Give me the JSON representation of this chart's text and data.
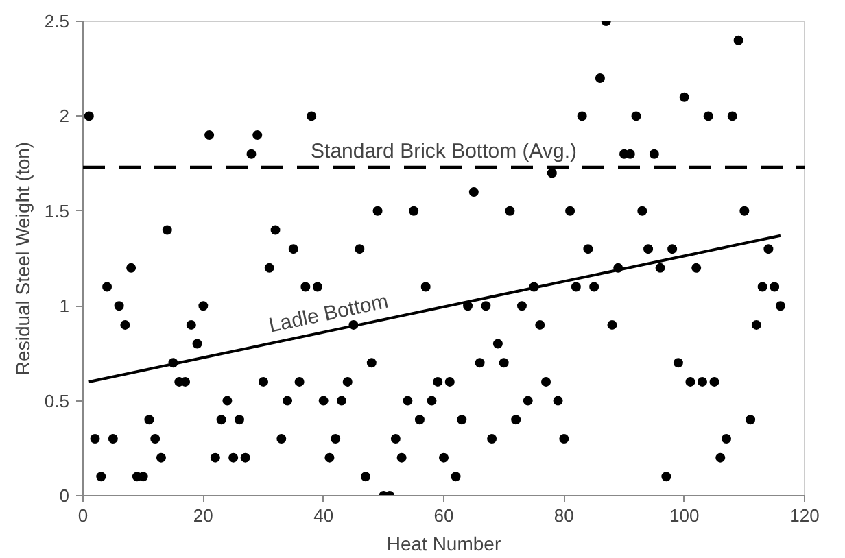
{
  "chart_data": {
    "type": "scatter",
    "xlabel": "Heat Number",
    "ylabel": "Residual Steel Weight (ton)",
    "xlim": [
      0,
      120
    ],
    "ylim": [
      0,
      2.5
    ],
    "xticks": [
      0,
      20,
      40,
      60,
      80,
      100,
      120
    ],
    "yticks": [
      0,
      0.5,
      1,
      1.5,
      2,
      2.5
    ],
    "grid": false,
    "series": [
      {
        "color": "#000000",
        "marker": "circle",
        "x": [
          1,
          2,
          3,
          4,
          5,
          6,
          7,
          8,
          9,
          10,
          11,
          12,
          13,
          14,
          15,
          16,
          17,
          18,
          19,
          20,
          21,
          22,
          23,
          24,
          25,
          26,
          27,
          28,
          29,
          30,
          31,
          32,
          33,
          34,
          35,
          36,
          37,
          38,
          39,
          40,
          41,
          42,
          43,
          44,
          45,
          46,
          47,
          48,
          49,
          50,
          51,
          52,
          53,
          54,
          55,
          56,
          57,
          58,
          59,
          60,
          61,
          62,
          63,
          64,
          65,
          66,
          67,
          68,
          69,
          70,
          71,
          72,
          73,
          74,
          75,
          76,
          77,
          78,
          79,
          80,
          81,
          82,
          83,
          84,
          85,
          86,
          87,
          88,
          89,
          90,
          91,
          92,
          93,
          94,
          95,
          96,
          97,
          98,
          99,
          100,
          101,
          102,
          103,
          104,
          105,
          106,
          107,
          108,
          109,
          110,
          111,
          112,
          113,
          114,
          115,
          116
        ],
        "values": [
          2.0,
          0.3,
          0.1,
          1.1,
          0.3,
          1.0,
          0.9,
          1.2,
          0.1,
          0.1,
          0.4,
          0.3,
          0.2,
          1.4,
          0.7,
          0.6,
          0.6,
          0.9,
          0.8,
          1.0,
          1.9,
          0.2,
          0.4,
          0.5,
          0.2,
          0.4,
          0.2,
          1.8,
          1.9,
          0.6,
          1.2,
          1.4,
          0.3,
          0.5,
          1.3,
          0.6,
          1.1,
          2.0,
          1.1,
          0.5,
          0.2,
          0.3,
          0.5,
          0.6,
          0.9,
          1.3,
          0.1,
          0.7,
          1.5,
          0.0,
          0.0,
          0.3,
          0.2,
          0.5,
          1.5,
          0.4,
          1.1,
          0.5,
          0.6,
          0.2,
          0.6,
          0.1,
          0.4,
          1.0,
          1.6,
          0.7,
          1.0,
          0.3,
          0.8,
          0.7,
          1.5,
          0.4,
          1.0,
          0.5,
          1.1,
          0.9,
          0.6,
          1.7,
          0.5,
          0.3,
          1.5,
          1.1,
          2.0,
          1.3,
          1.1,
          2.2,
          2.5,
          0.9,
          1.2,
          1.8,
          1.8,
          2.0,
          1.5,
          1.3,
          1.8,
          1.2,
          0.1,
          1.3,
          0.7,
          2.1,
          0.6,
          1.2,
          0.6,
          2.0,
          0.6,
          0.2,
          0.3,
          2.0,
          2.4,
          1.5,
          0.4,
          0.9,
          1.1,
          1.3,
          1.1,
          1.0
        ]
      },
      {
        "type": "line",
        "color": "#000000",
        "line_style": "solid",
        "x": [
          1,
          116
        ],
        "values": [
          0.6,
          1.37
        ]
      }
    ],
    "ref_lines": [
      {
        "axis": "y",
        "value": 1.73,
        "label": "Standard Brick Bottom (Avg.)",
        "color": "#000000",
        "line_style": "dashed"
      }
    ],
    "annotations": [
      "Ladle Bottom"
    ]
  }
}
